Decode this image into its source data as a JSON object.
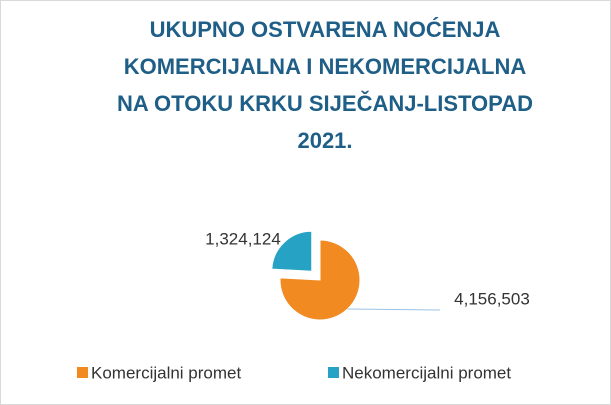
{
  "chart_data": {
    "type": "pie",
    "title": [
      "UKUPNO OSTVARENA NOĆENJA",
      "KOMERCIJALNA I NEKOMERCIJALNA",
      "NA OTOKU KRKU  SIJEČANJ-LISTOPAD",
      "2021."
    ],
    "categories": [
      "Komercijalni promet",
      "Nekomercijalni promet"
    ],
    "values": [
      4156503,
      1324124
    ],
    "value_labels": [
      "4,156,503",
      "1,324,124"
    ],
    "colors": [
      "#f28a22",
      "#26a3c4"
    ],
    "legend": "bottom"
  }
}
